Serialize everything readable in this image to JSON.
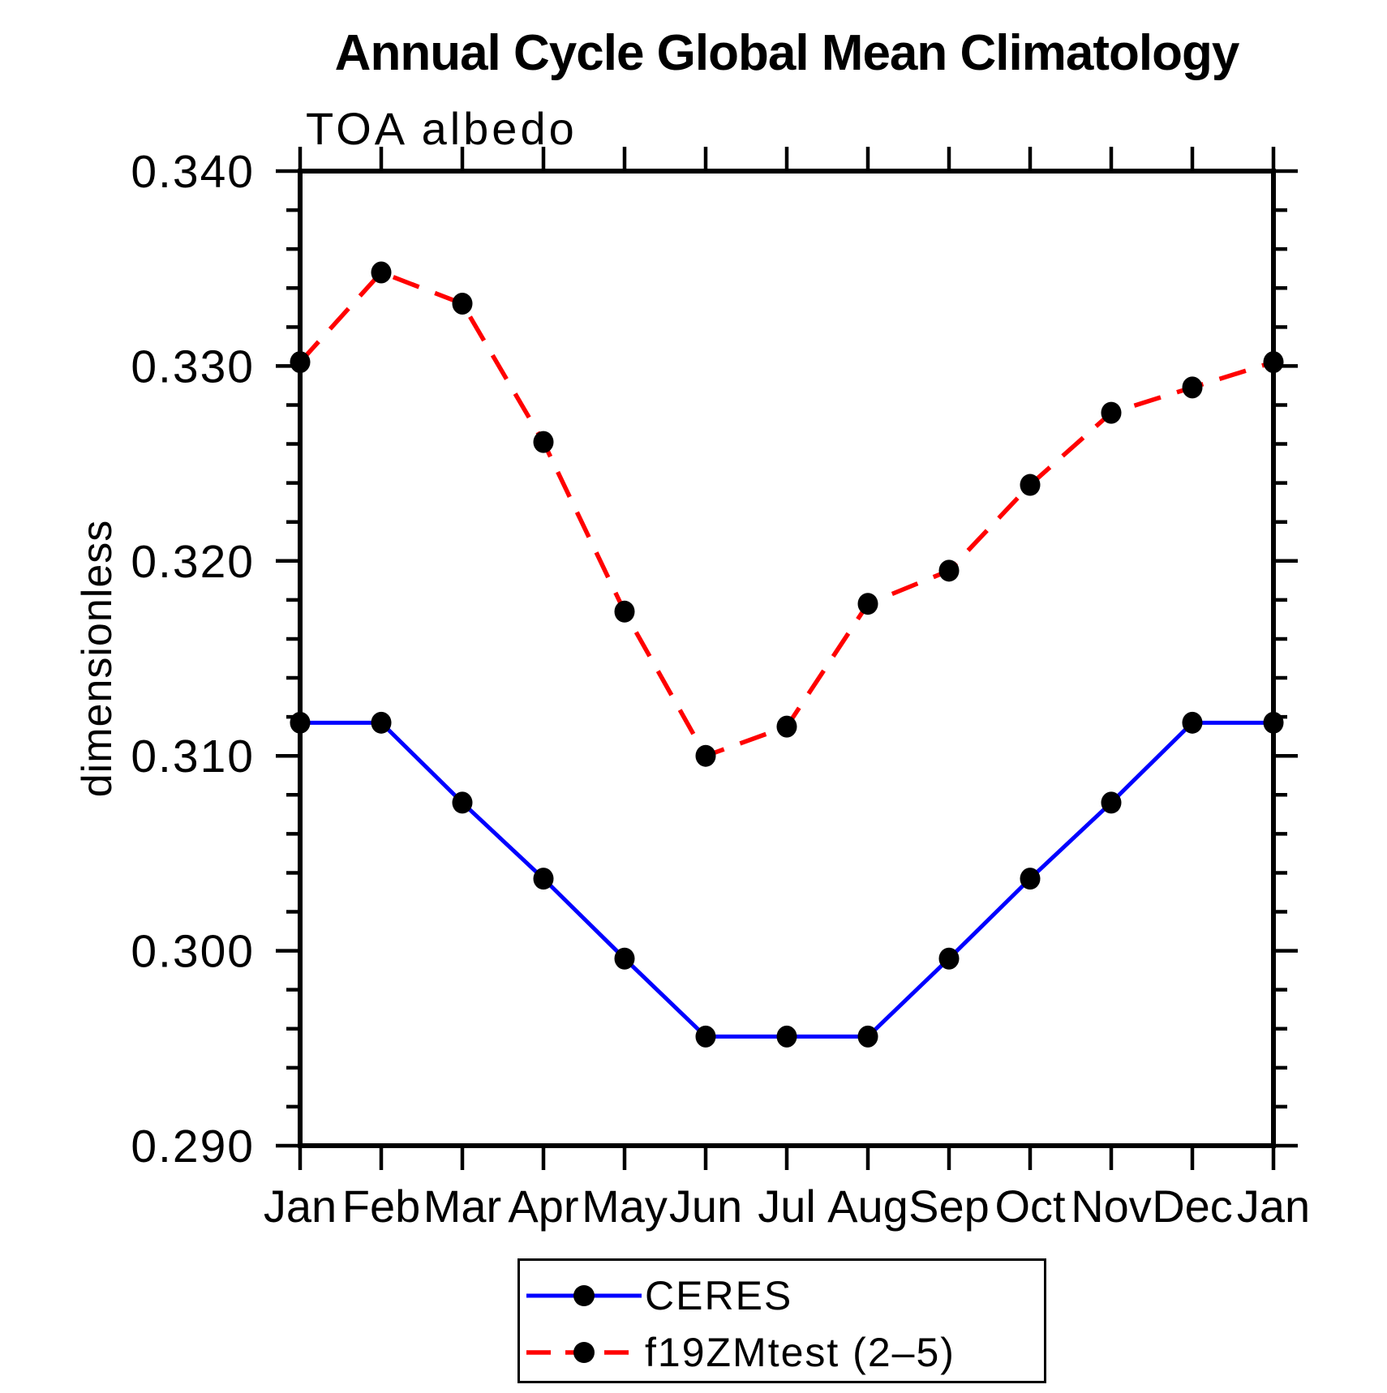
{
  "title": "Annual Cycle Global Mean Climatology",
  "subtitle": "TOA albedo",
  "y_axis_label": "dimensionless",
  "chart_data": {
    "type": "line",
    "categories": [
      "Jan",
      "Feb",
      "Mar",
      "Apr",
      "May",
      "Jun",
      "Jul",
      "Aug",
      "Sep",
      "Oct",
      "Nov",
      "Dec",
      "Jan"
    ],
    "series": [
      {
        "name": "CERES",
        "color": "#0000ff",
        "line_style": "solid",
        "marker": "filled-circle",
        "marker_color": "#000000",
        "values": [
          0.3117,
          0.3117,
          0.3076,
          0.3037,
          0.2996,
          0.2956,
          0.2956,
          0.2956,
          0.2996,
          0.3037,
          0.3076,
          0.3117,
          0.3117
        ]
      },
      {
        "name": "f19ZMtest (2–5)",
        "color": "#ff0000",
        "line_style": "dashed",
        "marker": "filled-circle",
        "marker_color": "#000000",
        "values": [
          0.3302,
          0.3348,
          0.3332,
          0.3261,
          0.3174,
          0.31,
          0.3115,
          0.3178,
          0.3195,
          0.3239,
          0.3276,
          0.3289,
          0.3302
        ]
      }
    ],
    "ylim": [
      0.29,
      0.34
    ],
    "y_major_step": 0.01,
    "y_minor_step": 0.002,
    "y_major_tick_labels": [
      "0.290",
      "0.300",
      "0.310",
      "0.320",
      "0.330",
      "0.340"
    ],
    "grid": false,
    "legend_position": "bottom-center",
    "axis_color": "#000000",
    "background_color": "#ffffff"
  }
}
